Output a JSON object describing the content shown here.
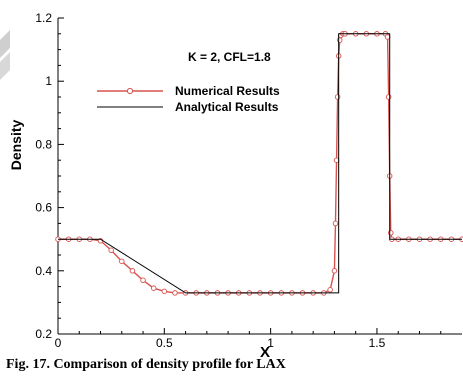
{
  "chart_data": {
    "type": "line",
    "xlabel": "X",
    "ylabel": "Density",
    "xlim": [
      0,
      1.9
    ],
    "ylim": [
      0.2,
      1.2
    ],
    "xticks": [
      {
        "v": 0,
        "label": "0"
      },
      {
        "v": 0.5,
        "label": "0.5"
      },
      {
        "v": 1,
        "label": "1"
      },
      {
        "v": 1.5,
        "label": "1.5"
      }
    ],
    "yticks": [
      {
        "v": 0.2,
        "label": "0.2"
      },
      {
        "v": 0.4,
        "label": "0.4"
      },
      {
        "v": 0.6,
        "label": "0.6"
      },
      {
        "v": 0.8,
        "label": "0.8"
      },
      {
        "v": 1,
        "label": "1"
      },
      {
        "v": 1.2,
        "label": "1.2"
      }
    ],
    "annotation": "K = 2,  CFL=1.8",
    "legend_position": "upper-left",
    "grid": false,
    "series": [
      {
        "name": "Numerical Results",
        "color": "#d9534f",
        "marker": "circle",
        "x": [
          0,
          0.05,
          0.1,
          0.15,
          0.2,
          0.25,
          0.3,
          0.35,
          0.4,
          0.45,
          0.5,
          0.55,
          0.6,
          0.65,
          0.7,
          0.75,
          0.8,
          0.85,
          0.9,
          0.95,
          1.0,
          1.05,
          1.1,
          1.15,
          1.2,
          1.25,
          1.28,
          1.3,
          1.305,
          1.31,
          1.315,
          1.32,
          1.325,
          1.33,
          1.34,
          1.35,
          1.4,
          1.45,
          1.5,
          1.54,
          1.55,
          1.555,
          1.56,
          1.565,
          1.57,
          1.6,
          1.65,
          1.7,
          1.75,
          1.8,
          1.85,
          1.9
        ],
        "y": [
          0.5,
          0.5,
          0.5,
          0.5,
          0.495,
          0.465,
          0.43,
          0.4,
          0.37,
          0.345,
          0.335,
          0.33,
          0.33,
          0.33,
          0.33,
          0.33,
          0.33,
          0.33,
          0.33,
          0.33,
          0.33,
          0.33,
          0.33,
          0.33,
          0.33,
          0.33,
          0.34,
          0.4,
          0.55,
          0.75,
          0.95,
          1.08,
          1.13,
          1.145,
          1.15,
          1.15,
          1.15,
          1.15,
          1.15,
          1.15,
          1.14,
          0.95,
          0.7,
          0.52,
          0.5,
          0.5,
          0.5,
          0.5,
          0.5,
          0.5,
          0.5,
          0.5
        ]
      },
      {
        "name": "Analytical Results",
        "color": "#000000",
        "x": [
          0,
          0.2,
          0.6,
          1.32,
          1.32,
          1.56,
          1.56,
          1.9
        ],
        "y": [
          0.5,
          0.5,
          0.33,
          0.33,
          1.15,
          1.15,
          0.5,
          0.5
        ]
      }
    ]
  },
  "caption": "Fig. 17. Comparison of density profile for LAX"
}
